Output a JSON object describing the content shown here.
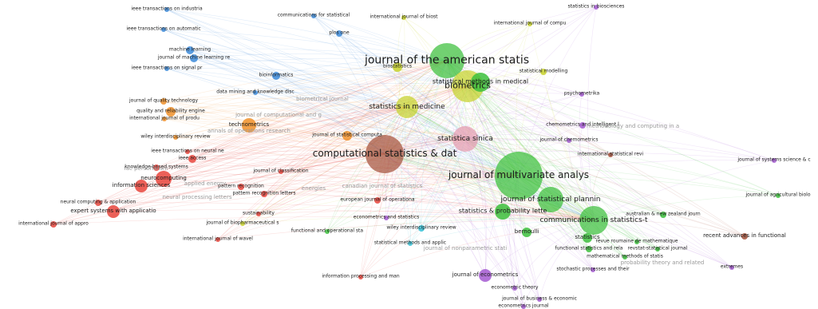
{
  "network": {
    "colors": {
      "red": "#e8453c",
      "green": "#3cbf3c",
      "blue": "#3d8bd9",
      "yellow": "#c8d22c",
      "purple": "#a45ad1",
      "orange": "#f0902a",
      "brown": "#a5523c",
      "pink": "#e59bb0",
      "cyan": "#35c1d6",
      "violet": "#e77fe0"
    },
    "nodes": [
      {
        "id": "jasa",
        "label": "journal of the american statis",
        "color": "green",
        "size": 22,
        "ty": 10
      },
      {
        "id": "biometrics",
        "label": "biometrics",
        "color": "yellow",
        "size": 20,
        "ty": 7
      },
      {
        "id": "csda",
        "label": "computational statistics & dat",
        "color": "brown",
        "size": 24,
        "ty": 8
      },
      {
        "id": "jma",
        "label": "journal of multivariate analys",
        "color": "green",
        "size": 30,
        "ty": 8
      },
      {
        "id": "stat-med",
        "label": "statistics in medicine",
        "color": "yellow",
        "size": 14,
        "ty": 5
      },
      {
        "id": "stat-sinica",
        "label": "statistica sinica",
        "color": "pink",
        "size": 16,
        "ty": 5
      },
      {
        "id": "jspi",
        "label": "journal of statistical plannin",
        "color": "green",
        "size": 16,
        "ty": 5
      },
      {
        "id": "comm-stat",
        "label": "communications in statistics-t",
        "color": "green",
        "size": 18,
        "ty": 5
      },
      {
        "id": "stat-prob-letters",
        "label": "statistics & probability lette",
        "color": "green",
        "size": 10,
        "ty": 4
      },
      {
        "id": "stat-methods-med",
        "label": "statistical methods in medical",
        "color": "green",
        "size": 12,
        "ty": 4
      },
      {
        "id": "technometrics",
        "label": "technometrics",
        "color": "orange",
        "size": 9,
        "ty": 3
      },
      {
        "id": "neurocomputing",
        "label": "neurocomputing",
        "color": "red",
        "size": 10,
        "ty": 3
      },
      {
        "id": "info-sciences",
        "label": "information sciences",
        "color": "red",
        "size": 8,
        "ty": 3
      },
      {
        "id": "expert-systems",
        "label": "expert systems with applicatio",
        "color": "red",
        "size": 8,
        "ty": 3
      },
      {
        "id": "j-econometrics",
        "label": "journal of econometrics",
        "color": "purple",
        "size": 8,
        "ty": 3
      },
      {
        "id": "bernoulli",
        "label": "bernoulli",
        "color": "green",
        "size": 6,
        "ty": 3
      },
      {
        "id": "statistics",
        "label": "statistics",
        "color": "green",
        "size": 6,
        "ty": 3
      },
      {
        "id": "recent-adv-functional",
        "label": "recent advances in functional",
        "color": "brown",
        "size": 4,
        "ty": 3
      },
      {
        "id": "biostatistics",
        "label": "biostatistics",
        "color": "yellow",
        "size": 6,
        "ty": 2
      },
      {
        "id": "j-stat-computation",
        "label": "journal of statistical computa",
        "color": "orange",
        "size": 6,
        "ty": 2
      },
      {
        "id": "quality-reliability",
        "label": "quality and reliability engine",
        "color": "orange",
        "size": 6,
        "ty": 2
      },
      {
        "id": "j-quality-tech",
        "label": "journal of quality technology",
        "color": "orange",
        "size": 4,
        "ty": 2
      },
      {
        "id": "machine-learning",
        "label": "machine learning",
        "color": "blue",
        "size": 5,
        "ty": 2
      },
      {
        "id": "jmlr",
        "label": "journal of machine learning re",
        "color": "blue",
        "size": 5,
        "ty": 2
      },
      {
        "id": "bioinformatics",
        "label": "bioinformatics",
        "color": "blue",
        "size": 5,
        "ty": 2
      },
      {
        "id": "plos-one",
        "label": "plos one",
        "color": "blue",
        "size": 4,
        "ty": 2
      },
      {
        "id": "ieee-industrial",
        "label": "ieee transactions on industria",
        "color": "blue",
        "size": 3,
        "ty": 2
      },
      {
        "id": "ieee-automatic",
        "label": "ieee transactions on automatic",
        "color": "blue",
        "size": 3,
        "ty": 2
      },
      {
        "id": "ieee-signal",
        "label": "ieee transactions on signal pr",
        "color": "blue",
        "size": 3,
        "ty": 2
      },
      {
        "id": "comm-statistical",
        "label": "communications for statistical",
        "color": "blue",
        "size": 3,
        "ty": 2
      },
      {
        "id": "int-j-biostat",
        "label": "international journal of biost",
        "color": "yellow",
        "size": 3,
        "ty": 2
      },
      {
        "id": "int-j-compu",
        "label": "international journal of compu",
        "color": "yellow",
        "size": 3,
        "ty": 2
      },
      {
        "id": "stat-biosciences",
        "label": "statistics in biosciences",
        "color": "purple",
        "size": 3,
        "ty": 2
      },
      {
        "id": "stat-modelling",
        "label": "statistical modelling",
        "color": "yellow",
        "size": 4,
        "ty": 2
      },
      {
        "id": "psychometrika",
        "label": "psychometrika",
        "color": "purple",
        "size": 3,
        "ty": 2
      },
      {
        "id": "data-mining",
        "label": "data mining and knowledge disc",
        "color": "blue",
        "size": 3,
        "ty": 2
      },
      {
        "id": "int-j-produ",
        "label": "international journal of produ",
        "color": "orange",
        "size": 3,
        "ty": 2
      },
      {
        "id": "wiley-review",
        "label": "wiley interdisciplinary review",
        "color": "orange",
        "size": 3,
        "ty": 2
      },
      {
        "id": "ieee-neural",
        "label": "ieee transactions on neural ne",
        "color": "red",
        "size": 3,
        "ty": 2
      },
      {
        "id": "ieee-access",
        "label": "ieee access",
        "color": "red",
        "size": 5,
        "ty": 2
      },
      {
        "id": "knowledge-based",
        "label": "knowledge-based systems",
        "color": "red",
        "size": 4,
        "ty": 2
      },
      {
        "id": "j-classification",
        "label": "journal of classification",
        "color": "red",
        "size": 3,
        "ty": 2
      },
      {
        "id": "pattern-recognition",
        "label": "pattern recognition",
        "color": "red",
        "size": 4,
        "ty": 2
      },
      {
        "id": "pattern-rec-letters",
        "label": "pattern recognition letters",
        "color": "red",
        "size": 4,
        "ty": 2
      },
      {
        "id": "neural-comp-app",
        "label": "neural computing & application",
        "color": "red",
        "size": 4,
        "ty": 2
      },
      {
        "id": "int-j-approx",
        "label": "international journal of appro",
        "color": "red",
        "size": 4,
        "ty": 2
      },
      {
        "id": "chemometrics",
        "label": "chemometrics and intelligent l",
        "color": "purple",
        "size": 4,
        "ty": 2
      },
      {
        "id": "j-chemometrics",
        "label": "journal of chemometrics",
        "color": "purple",
        "size": 3,
        "ty": 2
      },
      {
        "id": "int-stat-review",
        "label": "international statistical revi",
        "color": "brown",
        "size": 3,
        "ty": 2
      },
      {
        "id": "j-systems-science",
        "label": "journal of systems science & c",
        "color": "purple",
        "size": 3,
        "ty": 2
      },
      {
        "id": "j-agri-bio",
        "label": "journal of agricultural biolo",
        "color": "green",
        "size": 3,
        "ty": 2
      },
      {
        "id": "aus-nz",
        "label": "australian & new zealand journ",
        "color": "green",
        "size": 4,
        "ty": 2
      },
      {
        "id": "eur-j-operational",
        "label": "european journal of operationa",
        "color": "red",
        "size": 4,
        "ty": 2
      },
      {
        "id": "econometrics-stats",
        "label": "econometrics and statistics",
        "color": "purple",
        "size": 3,
        "ty": 2
      },
      {
        "id": "wiley-review-2",
        "label": "wiley interdisciplinary review",
        "color": "cyan",
        "size": 4,
        "ty": 2
      },
      {
        "id": "sustainability",
        "label": "sustainability",
        "color": "red",
        "size": 3,
        "ty": 2
      },
      {
        "id": "j-biopharm",
        "label": "journal of biopharmaceutical s",
        "color": "yellow",
        "size": 3,
        "ty": 2
      },
      {
        "id": "functional-operational",
        "label": "functional and operational sta",
        "color": "green",
        "size": 3,
        "ty": 2
      },
      {
        "id": "stat-methods-applic",
        "label": "statistical methods and applic",
        "color": "cyan",
        "size": 3,
        "ty": 2
      },
      {
        "id": "int-j-wavel",
        "label": "international journal of wavel",
        "color": "red",
        "size": 3,
        "ty": 2
      },
      {
        "id": "functional-stat-rela",
        "label": "functional statistics and rela",
        "color": "green",
        "size": 4,
        "ty": 2
      },
      {
        "id": "revue-roumaine",
        "label": "revue roumaine de mathematique",
        "color": "green",
        "size": 3,
        "ty": 2
      },
      {
        "id": "revstat",
        "label": "revstat-statistical journal",
        "color": "green",
        "size": 3,
        "ty": 2
      },
      {
        "id": "math-methods-stat",
        "label": "mathematical methods of statis",
        "color": "green",
        "size": 3,
        "ty": 2
      },
      {
        "id": "stochastic-processes",
        "label": "stochastic processes and their",
        "color": "purple",
        "size": 3,
        "ty": 2
      },
      {
        "id": "econometric-theory",
        "label": "econometric theory",
        "color": "purple",
        "size": 3,
        "ty": 2
      },
      {
        "id": "info-processing",
        "label": "information processing and man",
        "color": "red",
        "size": 3,
        "ty": 2
      },
      {
        "id": "j-business-econ",
        "label": "journal of business & economic",
        "color": "purple",
        "size": 3,
        "ty": 2
      },
      {
        "id": "econometrics-journal",
        "label": "econometrics journal",
        "color": "purple",
        "size": 3,
        "ty": 2
      },
      {
        "id": "extremes",
        "label": "extremes",
        "color": "purple",
        "size": 3,
        "ty": 2
      }
    ],
    "faint_labels": [
      "methodology and computing in a",
      "journal of computational and g",
      "annals of operations research",
      "biometrical journal",
      "applied energy",
      "fac personalism",
      "neural processing letters",
      "energies",
      "canadian journal of statistics",
      "probability theory and related",
      "journal of nonparametric stati"
    ]
  }
}
